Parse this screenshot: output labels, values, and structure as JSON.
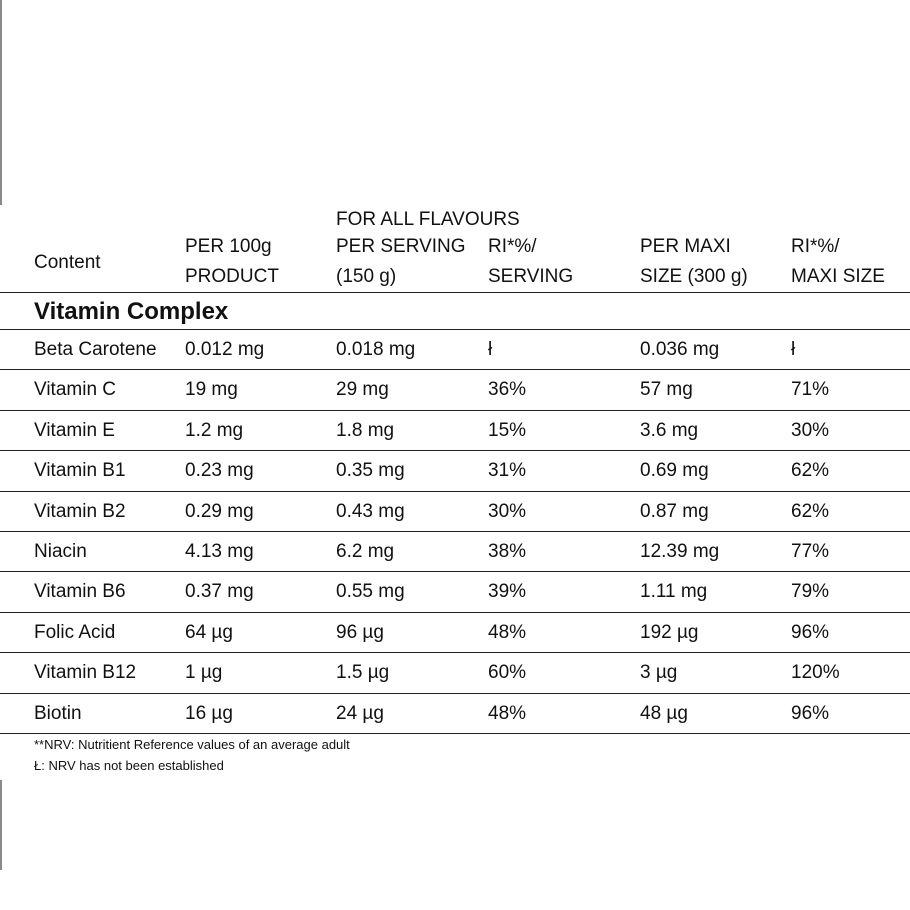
{
  "header": {
    "flavours_label": "FOR ALL FLAVOURS",
    "columns": [
      {
        "line1": "",
        "line2": "Content"
      },
      {
        "line1": "PER 100g",
        "line2": "PRODUCT"
      },
      {
        "line1": "PER SERVING",
        "line2": "(150 g)"
      },
      {
        "line1": "RI*%/",
        "line2": "SERVING"
      },
      {
        "line1": "PER MAXI",
        "line2": "SIZE (300 g)"
      },
      {
        "line1": "RI*%/",
        "line2": "MAXI SIZE"
      }
    ]
  },
  "section": {
    "title": "Vitamin Complex"
  },
  "rows": [
    [
      "Beta Carotene",
      "0.012 mg",
      "0.018 mg",
      "ł",
      "0.036 mg",
      "ł"
    ],
    [
      "Vitamin C",
      "19 mg",
      "29 mg",
      "36%",
      "57 mg",
      "71%"
    ],
    [
      "Vitamin E",
      "1.2 mg",
      "1.8 mg",
      "15%",
      "3.6 mg",
      "30%"
    ],
    [
      "Vitamin B1",
      "0.23 mg",
      "0.35 mg",
      "31%",
      "0.69 mg",
      "62%"
    ],
    [
      "Vitamin B2",
      "0.29 mg",
      "0.43 mg",
      "30%",
      "0.87 mg",
      "62%"
    ],
    [
      "Niacin",
      "4.13 mg",
      "6.2 mg",
      "38%",
      "12.39 mg",
      "77%"
    ],
    [
      "Vitamin B6",
      "0.37 mg",
      "0.55 mg",
      "39%",
      "1.11 mg",
      "79%"
    ],
    [
      "Folic Acid",
      "64 µg",
      "96 µg",
      "48%",
      "192 µg",
      "96%"
    ],
    [
      "Vitamin B12",
      "1 µg",
      "1.5 µg",
      "60%",
      "3 µg",
      "120%"
    ],
    [
      "Biotin",
      "16 µg",
      "24 µg",
      "48%",
      "48 µg",
      "96%"
    ]
  ],
  "footnotes": {
    "nrv": "**NRV: Nutritient Reference values of an average adult",
    "not_established": "Ł: NRV has not been established"
  }
}
